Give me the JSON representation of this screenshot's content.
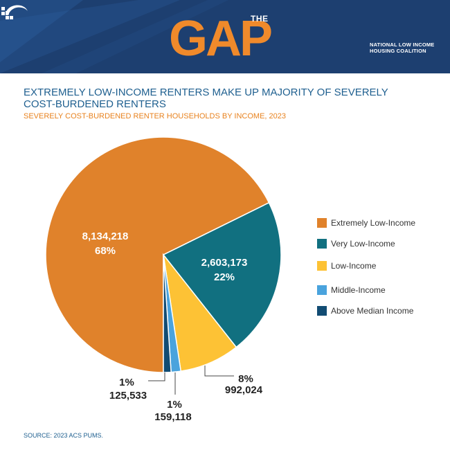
{
  "header": {
    "logo_the": "THE",
    "logo_gap": "GAP",
    "org_line1": "NATIONAL LOW INCOME",
    "org_line2": "HOUSING COALITION"
  },
  "colors": {
    "banner": "#1d3f70",
    "brand_orange": "#f08a2b",
    "title_blue": "#1e5f8f"
  },
  "chart_data": {
    "type": "pie",
    "title": "EXTREMELY LOW-INCOME RENTERS MAKE UP MAJORITY OF SEVERELY COST-BURDENED RENTERS",
    "subtitle": "SEVERELY COST-BURDENED RENTER HOUSEHOLDS BY INCOME, 2023",
    "legend_position": "right",
    "slices": [
      {
        "name": "Extremely Low-Income",
        "value": 8134218,
        "value_label": "8,134,218",
        "percent_label": "68%",
        "color": "#e0822b"
      },
      {
        "name": "Very Low-Income",
        "value": 2603173,
        "value_label": "2,603,173",
        "percent_label": "22%",
        "color": "#117080"
      },
      {
        "name": "Low-Income",
        "value": 992024,
        "value_label": "992,024",
        "percent_label": "8%",
        "color": "#fdc235"
      },
      {
        "name": "Middle-Income",
        "value": 159118,
        "value_label": "159,118",
        "percent_label": "1%",
        "color": "#4aa3dd"
      },
      {
        "name": "Above Median Income",
        "value": 125533,
        "value_label": "125,533",
        "percent_label": "1%",
        "color": "#124c73"
      }
    ]
  },
  "source": "SOURCE: 2023 ACS PUMS."
}
